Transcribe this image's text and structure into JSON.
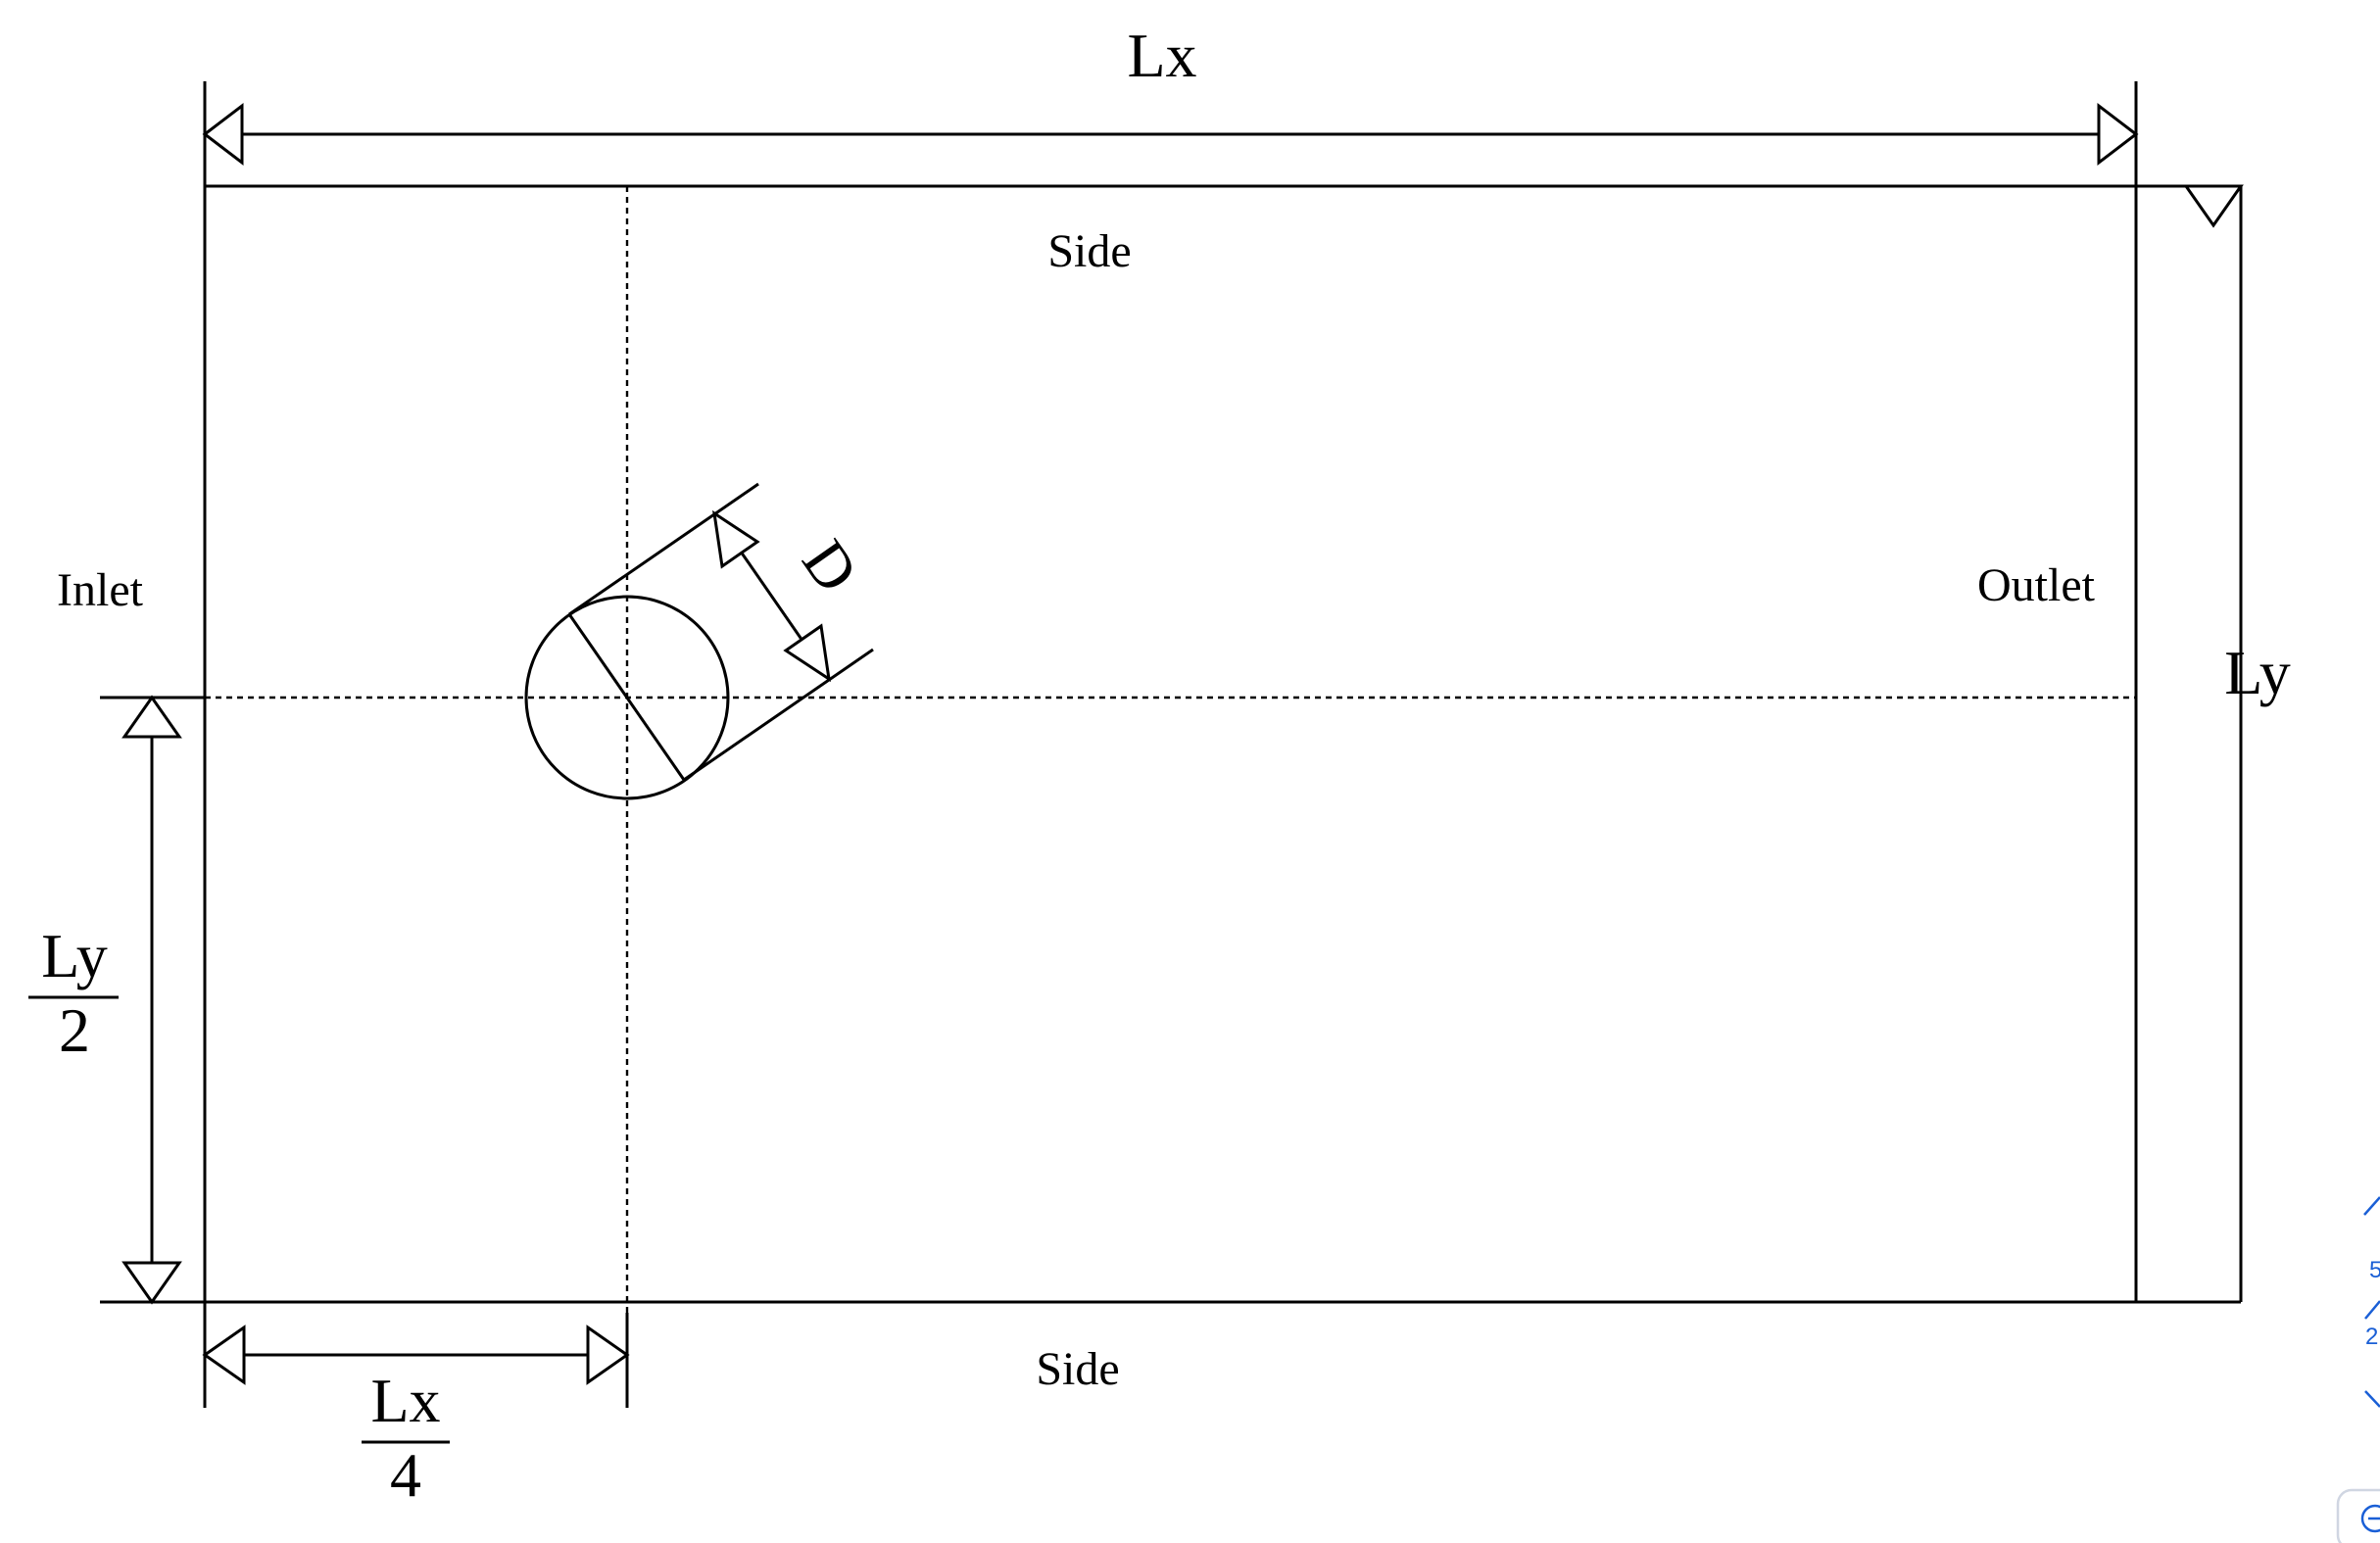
{
  "diagram": {
    "labels": {
      "lx_top": "Lx",
      "side_top": "Side",
      "side_bottom": "Side",
      "inlet": "Inlet",
      "outlet": "Outlet",
      "ly_right": "Ly",
      "ly_half_num": "Ly",
      "ly_half_den": "2",
      "lx_quarter_num": "Lx",
      "lx_quarter_den": "4",
      "diameter": "D"
    }
  },
  "edge_widget": {
    "accent": "#1a5fd6",
    "digit_top": "5",
    "digit_bottom": "2",
    "icons": [
      "chevron-up-icon",
      "chevron-down-icon",
      "zoom-in-icon"
    ]
  }
}
